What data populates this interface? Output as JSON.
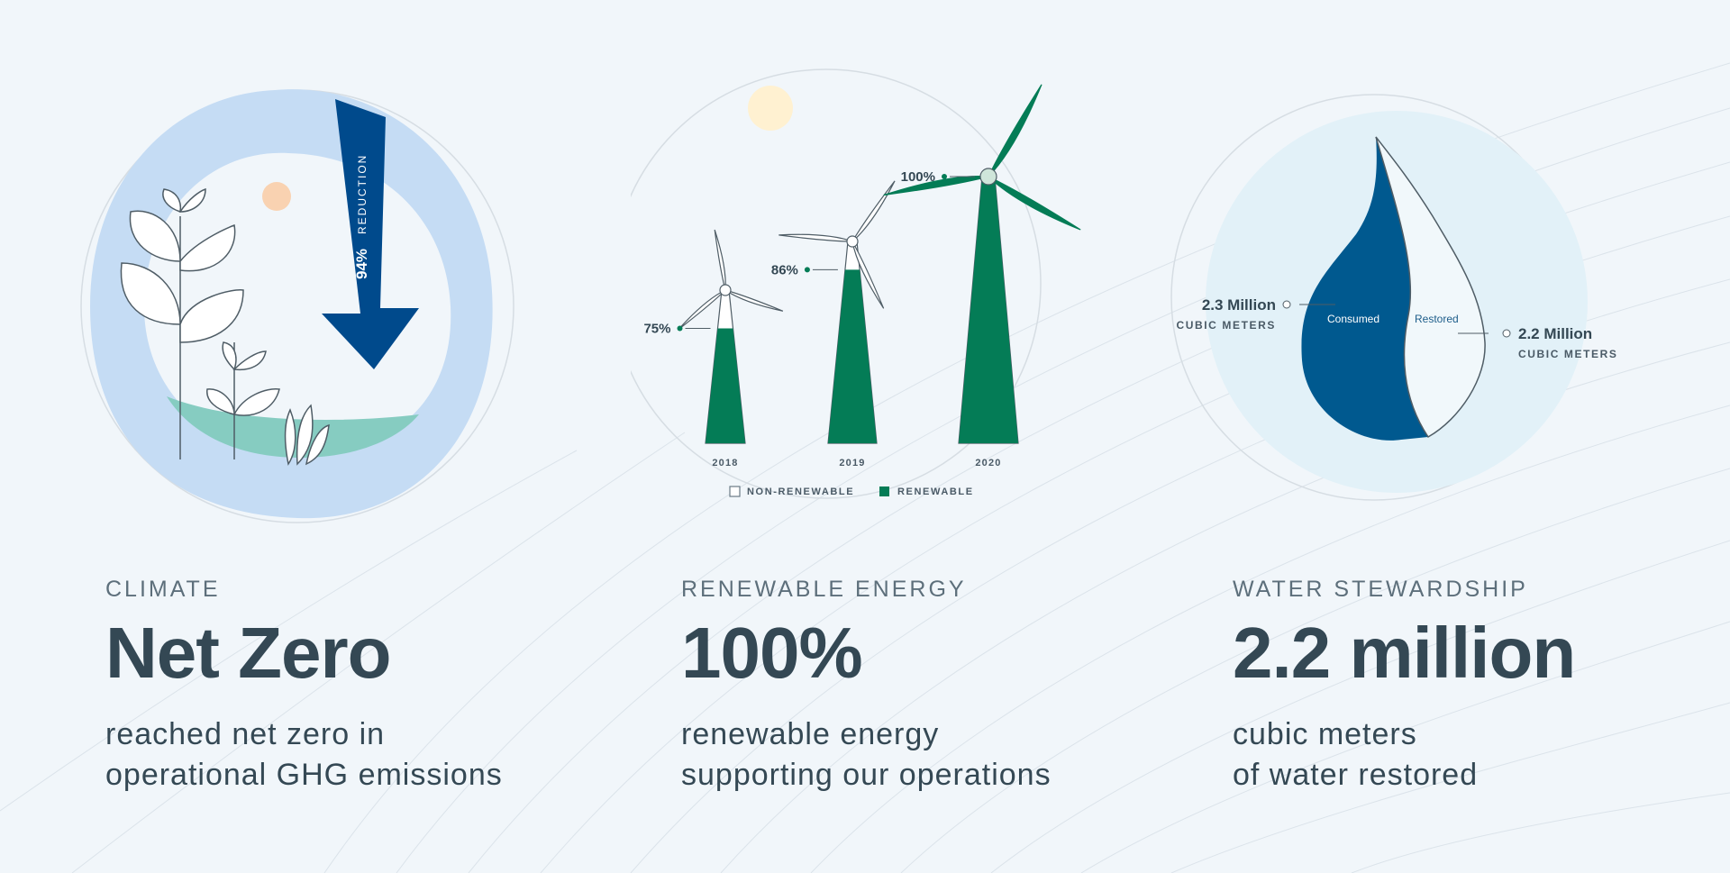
{
  "colors": {
    "background": "#f1f6fa",
    "dark_text": "#344854",
    "muted_text": "#5d6f7b",
    "light_blue": "#c5dcf4",
    "navy": "#004a8c",
    "water_blue": "#00598f",
    "green": "#047c56",
    "teal": "#86ccc1",
    "peach": "#f9d2b1",
    "pale_yellow": "#fff1d1"
  },
  "climate": {
    "category": "CLIMATE",
    "headline": "Net Zero",
    "desc_line1": "reached net zero in",
    "desc_line2": "operational GHG emissions",
    "arrow_percent": "94%",
    "arrow_label": "REDUCTION",
    "reduction_value": 0.94
  },
  "renewable": {
    "category": "RENEWABLE ENERGY",
    "headline": "100%",
    "desc_line1": "renewable energy",
    "desc_line2": "supporting our operations",
    "legend": {
      "non_renewable": "NON-RENEWABLE",
      "renewable": "RENEWABLE"
    }
  },
  "water": {
    "category": "WATER STEWARDSHIP",
    "headline": "2.2 million",
    "desc_line1": "cubic meters",
    "desc_line2": "of water restored",
    "consumed_label": "Consumed",
    "restored_label": "Restored",
    "consumed_value": "2.3 Million",
    "consumed_unit": "CUBIC METERS",
    "restored_value": "2.2 Million",
    "restored_unit": "CUBIC METERS"
  },
  "chart_data": {
    "type": "bar",
    "categories": [
      "2018",
      "2019",
      "2020"
    ],
    "values": [
      75,
      86,
      100
    ],
    "value_labels": [
      "75%",
      "86%",
      "100%"
    ],
    "ylim": [
      0,
      100
    ],
    "series": [
      {
        "name": "RENEWABLE",
        "values": [
          75,
          86,
          100
        ]
      },
      {
        "name": "NON-RENEWABLE",
        "values": [
          25,
          14,
          0
        ]
      }
    ],
    "legend_position": "bottom"
  }
}
